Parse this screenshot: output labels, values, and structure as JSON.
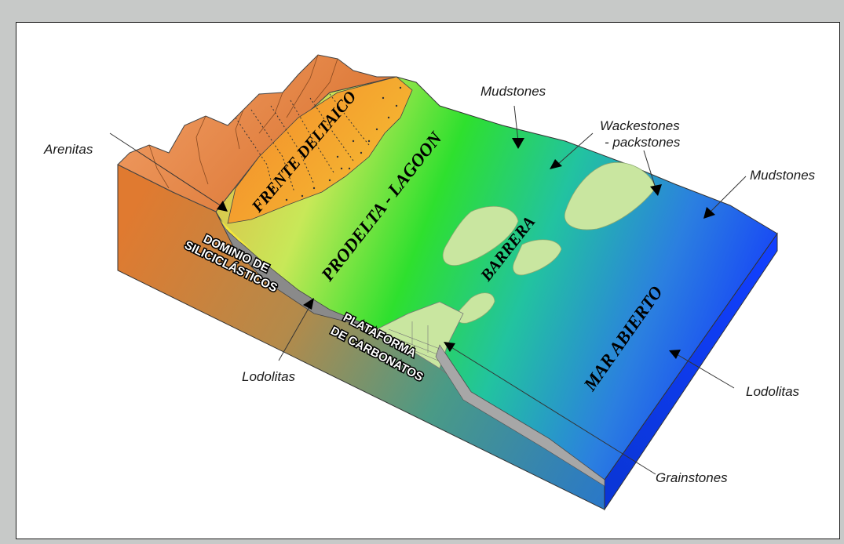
{
  "labels": {
    "arenitas": "Arenitas",
    "mudstones_top": "Mudstones",
    "wackestones_1": "Wackestones",
    "wackestones_2": "- packstones",
    "mudstones_right": "Mudstones",
    "lodolitas_left": "Lodolitas",
    "lodolitas_right": "Lodolitas",
    "grainstones": "Grainstones"
  },
  "zones": {
    "frente": "FRENTE DELTAICO",
    "prodelta": "PRODELTA - LAGOON",
    "barrera": "BARRERA",
    "mar": "MAR ABIERTO"
  },
  "sections": {
    "dominio_1": "DOMINIO DE",
    "dominio_2": "SILICICLÁSTICOS",
    "plataforma_1": "PLATAFORMA",
    "plataforma_2": "DE CARBONATOS"
  },
  "colors": {
    "background": "#c7c9c8",
    "frame": "#ffffff",
    "mountain": "#e6894c",
    "delta": "#f2b33a",
    "lagoon": "#2ee02e",
    "open_sea": "#1a3cff",
    "barrier_bars": "#c9e6a0"
  }
}
